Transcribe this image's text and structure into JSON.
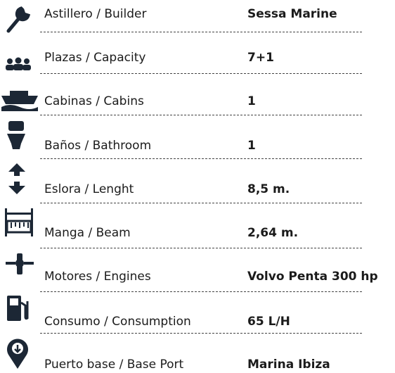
{
  "specs": [
    {
      "label": "Astillero / Builder",
      "value": "Sessa Marine"
    },
    {
      "label": "Plazas / Capacity",
      "value": "7+1"
    },
    {
      "label": "Cabinas / Cabins",
      "value": "1"
    },
    {
      "label": "Baños / Bathroom",
      "value": "1"
    },
    {
      "label": "Eslora / Lenght",
      "value": "8,5 m."
    },
    {
      "label": "Manga / Beam",
      "value": "2,64 m."
    },
    {
      "label": "Motores / Engines",
      "value": "Volvo Penta 300 hp"
    },
    {
      "label": "Consumo / Consumption",
      "value": "65 L/H"
    },
    {
      "label": "Puerto base / Base Port",
      "value": "Marina Ibiza"
    }
  ]
}
